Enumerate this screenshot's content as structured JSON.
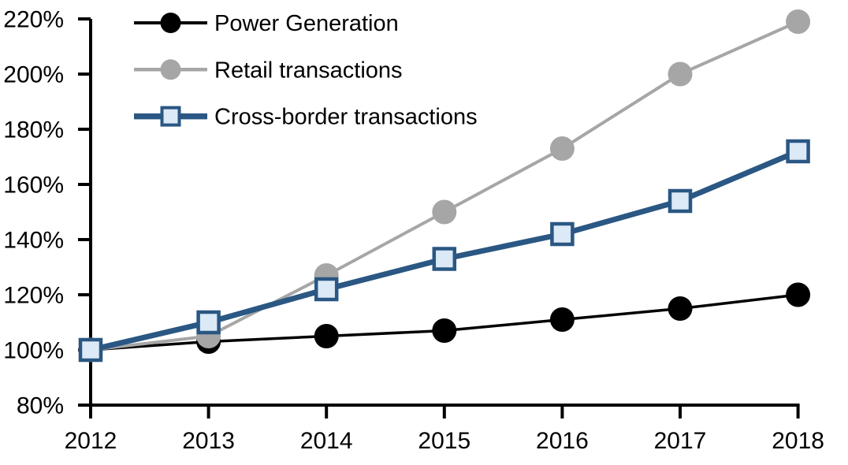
{
  "chart_data": {
    "type": "line",
    "title": "",
    "xlabel": "",
    "ylabel": "",
    "grid": false,
    "legend_position": "top-left-inside",
    "axis_color": "#000000",
    "x_labels": [
      "2012",
      "2013",
      "2014",
      "2015",
      "2016",
      "2017",
      "2018"
    ],
    "y_ticks": [
      "80%",
      "100%",
      "120%",
      "140%",
      "160%",
      "180%",
      "200%",
      "220%"
    ],
    "y_tick_values": [
      80,
      100,
      120,
      140,
      160,
      180,
      200,
      220
    ],
    "ylim": [
      80,
      220
    ],
    "series": [
      {
        "name": "Power Generation",
        "values": [
          100,
          103,
          105,
          107,
          111,
          115,
          120
        ],
        "color": "#000000",
        "marker": "circle",
        "marker_fill": "#000000",
        "line_width": 3.5
      },
      {
        "name": "Retail transactions",
        "values": [
          100,
          105,
          127,
          150,
          173,
          200,
          219
        ],
        "color": "#A6A6A6",
        "marker": "circle",
        "marker_fill": "#A6A6A6",
        "line_width": 4
      },
      {
        "name": "Cross-border transactions",
        "values": [
          100,
          110,
          122,
          133,
          142,
          154,
          172
        ],
        "color": "#2A5783",
        "marker": "square",
        "marker_fill": "#DCE9F6",
        "line_width": 7
      }
    ]
  }
}
